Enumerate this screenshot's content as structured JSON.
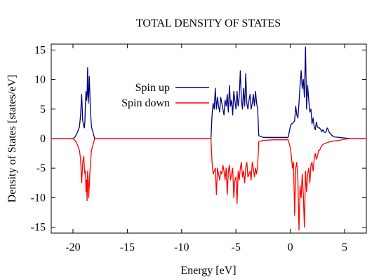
{
  "chart_data": {
    "type": "line",
    "title": "TOTAL DENSITY OF STATES",
    "xlabel": "Energy [eV]",
    "ylabel": "Density of States [states/eV]",
    "xlim": [
      -22,
      7
    ],
    "ylim": [
      -16,
      16
    ],
    "xticks": [
      -20,
      -15,
      -10,
      -5,
      0,
      5
    ],
    "yticks": [
      -15,
      -10,
      -5,
      0,
      5,
      10,
      15
    ],
    "grid": false,
    "legend_position": "top-center",
    "series": [
      {
        "name": "Spin up",
        "color": "#00007f",
        "x": [
          -22,
          -20.0,
          -19.8,
          -19.6,
          -19.4,
          -19.3,
          -19.2,
          -19.1,
          -19.0,
          -18.95,
          -18.9,
          -18.85,
          -18.8,
          -18.75,
          -18.7,
          -18.65,
          -18.6,
          -18.55,
          -18.5,
          -18.45,
          -18.4,
          -18.3,
          -18.0,
          -15,
          -10,
          -7.3,
          -7.2,
          -7.1,
          -7.0,
          -6.9,
          -6.8,
          -6.7,
          -6.6,
          -6.5,
          -6.4,
          -6.3,
          -6.2,
          -6.1,
          -6.0,
          -5.9,
          -5.8,
          -5.7,
          -5.6,
          -5.5,
          -5.4,
          -5.3,
          -5.2,
          -5.1,
          -5.0,
          -4.9,
          -4.8,
          -4.7,
          -4.6,
          -4.5,
          -4.4,
          -4.3,
          -4.2,
          -4.1,
          -4.0,
          -3.9,
          -3.8,
          -3.7,
          -3.6,
          -3.5,
          -3.4,
          -3.3,
          -3.2,
          -3.1,
          -3.0,
          -2.9,
          -2.5,
          -1.5,
          -0.2,
          0.0,
          0.1,
          0.2,
          0.3,
          0.4,
          0.5,
          0.6,
          0.7,
          0.8,
          0.9,
          1.0,
          1.1,
          1.2,
          1.3,
          1.4,
          1.5,
          1.6,
          1.7,
          1.8,
          1.9,
          2.0,
          2.1,
          2.2,
          2.3,
          2.4,
          2.5,
          2.6,
          2.7,
          2.8,
          2.9,
          3.0,
          3.1,
          3.2,
          3.3,
          3.4,
          3.5,
          3.6,
          3.8,
          4.0,
          4.5,
          5.0,
          5.5,
          7
        ],
        "y": [
          0,
          0,
          0.3,
          1.0,
          2.0,
          4.0,
          7.5,
          3.0,
          2.0,
          1.8,
          3.0,
          6.0,
          8.0,
          6.5,
          7.5,
          12.0,
          6.0,
          7.5,
          10.5,
          8.0,
          5.0,
          2.0,
          0,
          0,
          0,
          0,
          4.0,
          6.0,
          5.0,
          8.5,
          5.0,
          7.0,
          5.5,
          4.5,
          7.0,
          6.0,
          5.0,
          4.0,
          6.5,
          5.5,
          7.5,
          4.5,
          9.0,
          5.5,
          6.5,
          4.0,
          8.0,
          6.5,
          5.0,
          8.0,
          5.5,
          7.0,
          11.5,
          6.5,
          5.0,
          8.5,
          5.5,
          11.0,
          6.0,
          5.0,
          6.5,
          7.5,
          5.0,
          6.0,
          7.5,
          5.5,
          8.0,
          6.0,
          5.0,
          0.5,
          0.2,
          0.2,
          0.2,
          2.0,
          2.5,
          2.5,
          2.8,
          3.0,
          5.5,
          4.0,
          3.5,
          6.0,
          9.0,
          11.5,
          8.5,
          10.0,
          7.0,
          15.5,
          5.0,
          9.0,
          6.5,
          4.5,
          5.0,
          2.5,
          3.5,
          2.0,
          1.5,
          2.8,
          2.0,
          1.8,
          1.8,
          1.5,
          1.2,
          1.5,
          1.2,
          1.0,
          1.2,
          1.8,
          1.5,
          1.0,
          0.6,
          0.3,
          0.2,
          0.1,
          0,
          0
        ]
      },
      {
        "name": "Spin down",
        "color": "#ff0000",
        "x": [
          -22,
          -20.0,
          -19.8,
          -19.6,
          -19.4,
          -19.3,
          -19.2,
          -19.1,
          -19.0,
          -18.95,
          -18.9,
          -18.85,
          -18.8,
          -18.75,
          -18.7,
          -18.65,
          -18.6,
          -18.55,
          -18.5,
          -18.45,
          -18.4,
          -18.3,
          -18.0,
          -15,
          -10,
          -7.3,
          -7.2,
          -7.1,
          -7.0,
          -6.9,
          -6.8,
          -6.7,
          -6.6,
          -6.5,
          -6.4,
          -6.3,
          -6.2,
          -6.1,
          -6.0,
          -5.9,
          -5.8,
          -5.7,
          -5.6,
          -5.5,
          -5.4,
          -5.3,
          -5.2,
          -5.1,
          -5.0,
          -4.9,
          -4.8,
          -4.7,
          -4.6,
          -4.5,
          -4.4,
          -4.3,
          -4.2,
          -4.1,
          -4.0,
          -3.9,
          -3.8,
          -3.7,
          -3.6,
          -3.5,
          -3.4,
          -3.3,
          -3.2,
          -3.1,
          -3.0,
          -2.9,
          -2.5,
          -1.5,
          -0.2,
          0.0,
          0.1,
          0.2,
          0.3,
          0.4,
          0.5,
          0.6,
          0.7,
          0.8,
          0.9,
          1.0,
          1.1,
          1.2,
          1.3,
          1.4,
          1.5,
          1.6,
          1.7,
          1.8,
          1.9,
          2.0,
          2.1,
          2.2,
          2.3,
          2.4,
          2.5,
          2.6,
          2.7,
          2.8,
          2.9,
          3.0,
          3.2,
          3.5,
          4.0,
          4.5,
          5.0,
          5.5,
          6.0,
          7
        ],
        "y": [
          0,
          0,
          -0.3,
          -1.0,
          -2.0,
          -3.5,
          -7.5,
          -4.0,
          -3.0,
          -5.0,
          -6.0,
          -5.5,
          -9.0,
          -7.0,
          -10.5,
          -5.5,
          -7.0,
          -10.0,
          -8.0,
          -6.0,
          -4.5,
          -2.0,
          0,
          0,
          0,
          0,
          -4.0,
          -6.0,
          -5.5,
          -5.0,
          -9.5,
          -5.0,
          -6.0,
          -7.0,
          -5.5,
          -6.0,
          -4.5,
          -5.5,
          -7.0,
          -5.0,
          -9.5,
          -5.5,
          -4.5,
          -7.0,
          -6.0,
          -5.0,
          -10.0,
          -7.0,
          -6.5,
          -11.0,
          -5.5,
          -7.0,
          -5.0,
          -4.0,
          -6.5,
          -5.5,
          -7.5,
          -5.0,
          -4.0,
          -6.5,
          -6.0,
          -5.5,
          -7.0,
          -4.0,
          -5.0,
          -6.5,
          -5.0,
          -6.0,
          -4.5,
          -0.5,
          -0.3,
          -0.2,
          -0.2,
          -1.5,
          -3.0,
          -5.0,
          -4.0,
          -13.0,
          -5.0,
          -4.0,
          -7.0,
          -15.5,
          -8.0,
          -10.0,
          -6.0,
          -9.5,
          -15.0,
          -5.5,
          -9.0,
          -6.0,
          -5.0,
          -7.5,
          -4.5,
          -4.0,
          -5.5,
          -3.5,
          -2.5,
          -3.5,
          -3.0,
          -2.0,
          -2.0,
          -1.5,
          -1.2,
          -1.0,
          -0.8,
          -0.6,
          -0.4,
          -0.3,
          -0.1,
          0,
          0,
          0
        ]
      }
    ]
  }
}
